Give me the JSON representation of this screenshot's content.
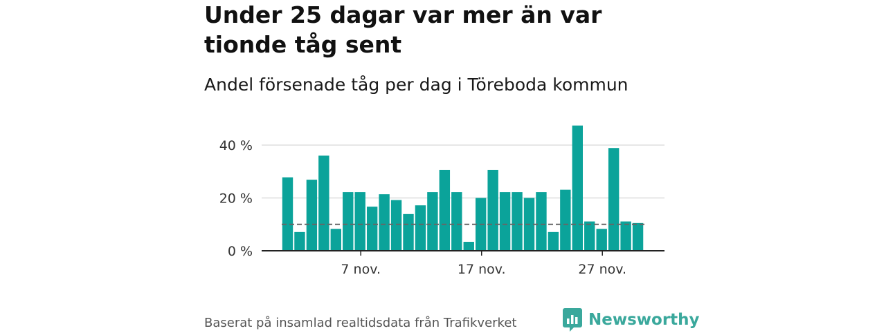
{
  "header": {
    "title": "Under 25 dagar var mer än var tionde tåg sent",
    "subtitle": "Andel försenade tåg per dag i Töreboda kommun"
  },
  "footer": {
    "source": "Baserat på insamlad realtidsdata från Trafikverket",
    "brand": "Newsworthy"
  },
  "colors": {
    "bar": "#0ba39a",
    "reference_line": "#666666",
    "grid": "#dddddd",
    "axis": "#222222",
    "brand": "#3aa89c"
  },
  "chart_data": {
    "type": "bar",
    "x": [
      "1 nov.",
      "2 nov.",
      "3 nov.",
      "4 nov.",
      "5 nov.",
      "6 nov.",
      "7 nov.",
      "8 nov.",
      "9 nov.",
      "10 nov.",
      "11 nov.",
      "12 nov.",
      "13 nov.",
      "14 nov.",
      "15 nov.",
      "16 nov.",
      "17 nov.",
      "18 nov.",
      "19 nov.",
      "20 nov.",
      "21 nov.",
      "22 nov.",
      "23 nov.",
      "24 nov.",
      "25 nov.",
      "26 nov.",
      "27 nov.",
      "28 nov.",
      "29 nov.",
      "30 nov."
    ],
    "values": [
      27.8,
      7.1,
      26.9,
      36.0,
      8.3,
      22.2,
      22.2,
      16.7,
      21.4,
      19.2,
      13.9,
      17.2,
      22.2,
      30.6,
      22.2,
      3.4,
      20.0,
      30.6,
      22.2,
      22.2,
      20.0,
      22.2,
      7.1,
      23.1,
      47.4,
      11.1,
      8.3,
      38.9,
      11.1,
      10.5
    ],
    "reference_value": 10,
    "ylim": [
      0,
      47.4
    ],
    "yticks": [
      0,
      20,
      40
    ],
    "ytick_labels": [
      "0 %",
      "20 %",
      "40 %"
    ],
    "xticks": [
      "7 nov.",
      "17 nov.",
      "27 nov."
    ],
    "xtick_positions": [
      7,
      17,
      27
    ],
    "grid": true
  }
}
